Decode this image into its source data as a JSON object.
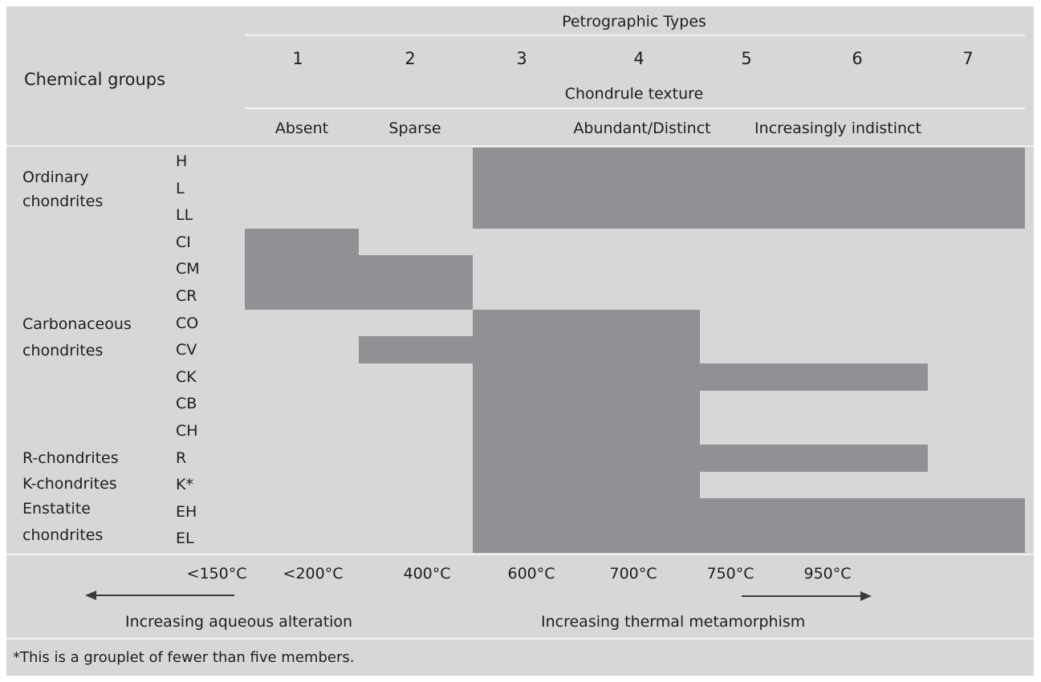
{
  "header": {
    "petrographic_title": "Petrographic Types",
    "chemical_groups_label": "Chemical groups",
    "types": [
      "1",
      "2",
      "3",
      "4",
      "5",
      "6",
      "7"
    ],
    "chondrule_texture_title": "Chondrule texture",
    "textures": {
      "absent": "Absent",
      "sparse": "Sparse",
      "abundant": "Abundant/Distinct",
      "indistinct": "Increasingly indistinct"
    }
  },
  "groups": {
    "ordinary_1": "Ordinary",
    "ordinary_2": "chondrites",
    "carbonaceous_1": "Carbonaceous",
    "carbonaceous_2": "chondrites",
    "r": "R-chondrites",
    "k": "K-chondrites",
    "enstatite_1": "Enstatite",
    "enstatite_2": "chondrites"
  },
  "chart_data": {
    "type": "range-bar",
    "x_categories": [
      "1",
      "2",
      "3",
      "4",
      "5",
      "6",
      "7"
    ],
    "rows": [
      {
        "code": "H",
        "from_type": 3,
        "to_type": 7
      },
      {
        "code": "L",
        "from_type": 3,
        "to_type": 7
      },
      {
        "code": "LL",
        "from_type": 3,
        "to_type": 7
      },
      {
        "code": "CI",
        "from_type": 1,
        "to_type": 1
      },
      {
        "code": "CM",
        "from_type": 1,
        "to_type": 2
      },
      {
        "code": "CR",
        "from_type": 1,
        "to_type": 2
      },
      {
        "code": "CO",
        "from_type": 3,
        "to_type": 4
      },
      {
        "code": "CV",
        "from_type": 2,
        "to_type": 4
      },
      {
        "code": "CK",
        "from_type": 3,
        "to_type": 6
      },
      {
        "code": "CB",
        "from_type": 3,
        "to_type": 4
      },
      {
        "code": "CH",
        "from_type": 3,
        "to_type": 4
      },
      {
        "code": "R",
        "from_type": 3,
        "to_type": 6
      },
      {
        "code": "K*",
        "from_type": 3,
        "to_type": 4
      },
      {
        "code": "EH",
        "from_type": 3,
        "to_type": 7
      },
      {
        "code": "EL",
        "from_type": 3,
        "to_type": 7
      }
    ],
    "temperatures": [
      "<150°C",
      "<200°C",
      "400°C",
      "600°C",
      "700°C",
      "750°C",
      "950°C"
    ]
  },
  "bottom": {
    "left_caption": "Increasing aqueous alteration",
    "right_caption": "Increasing thermal metamorphism"
  },
  "footnote": "*This is a grouplet of fewer than five members.",
  "colors": {
    "background": "#d7d7d7",
    "bar": "#919195",
    "rule": "#f2f2f2",
    "text": "#1e1e1e"
  }
}
